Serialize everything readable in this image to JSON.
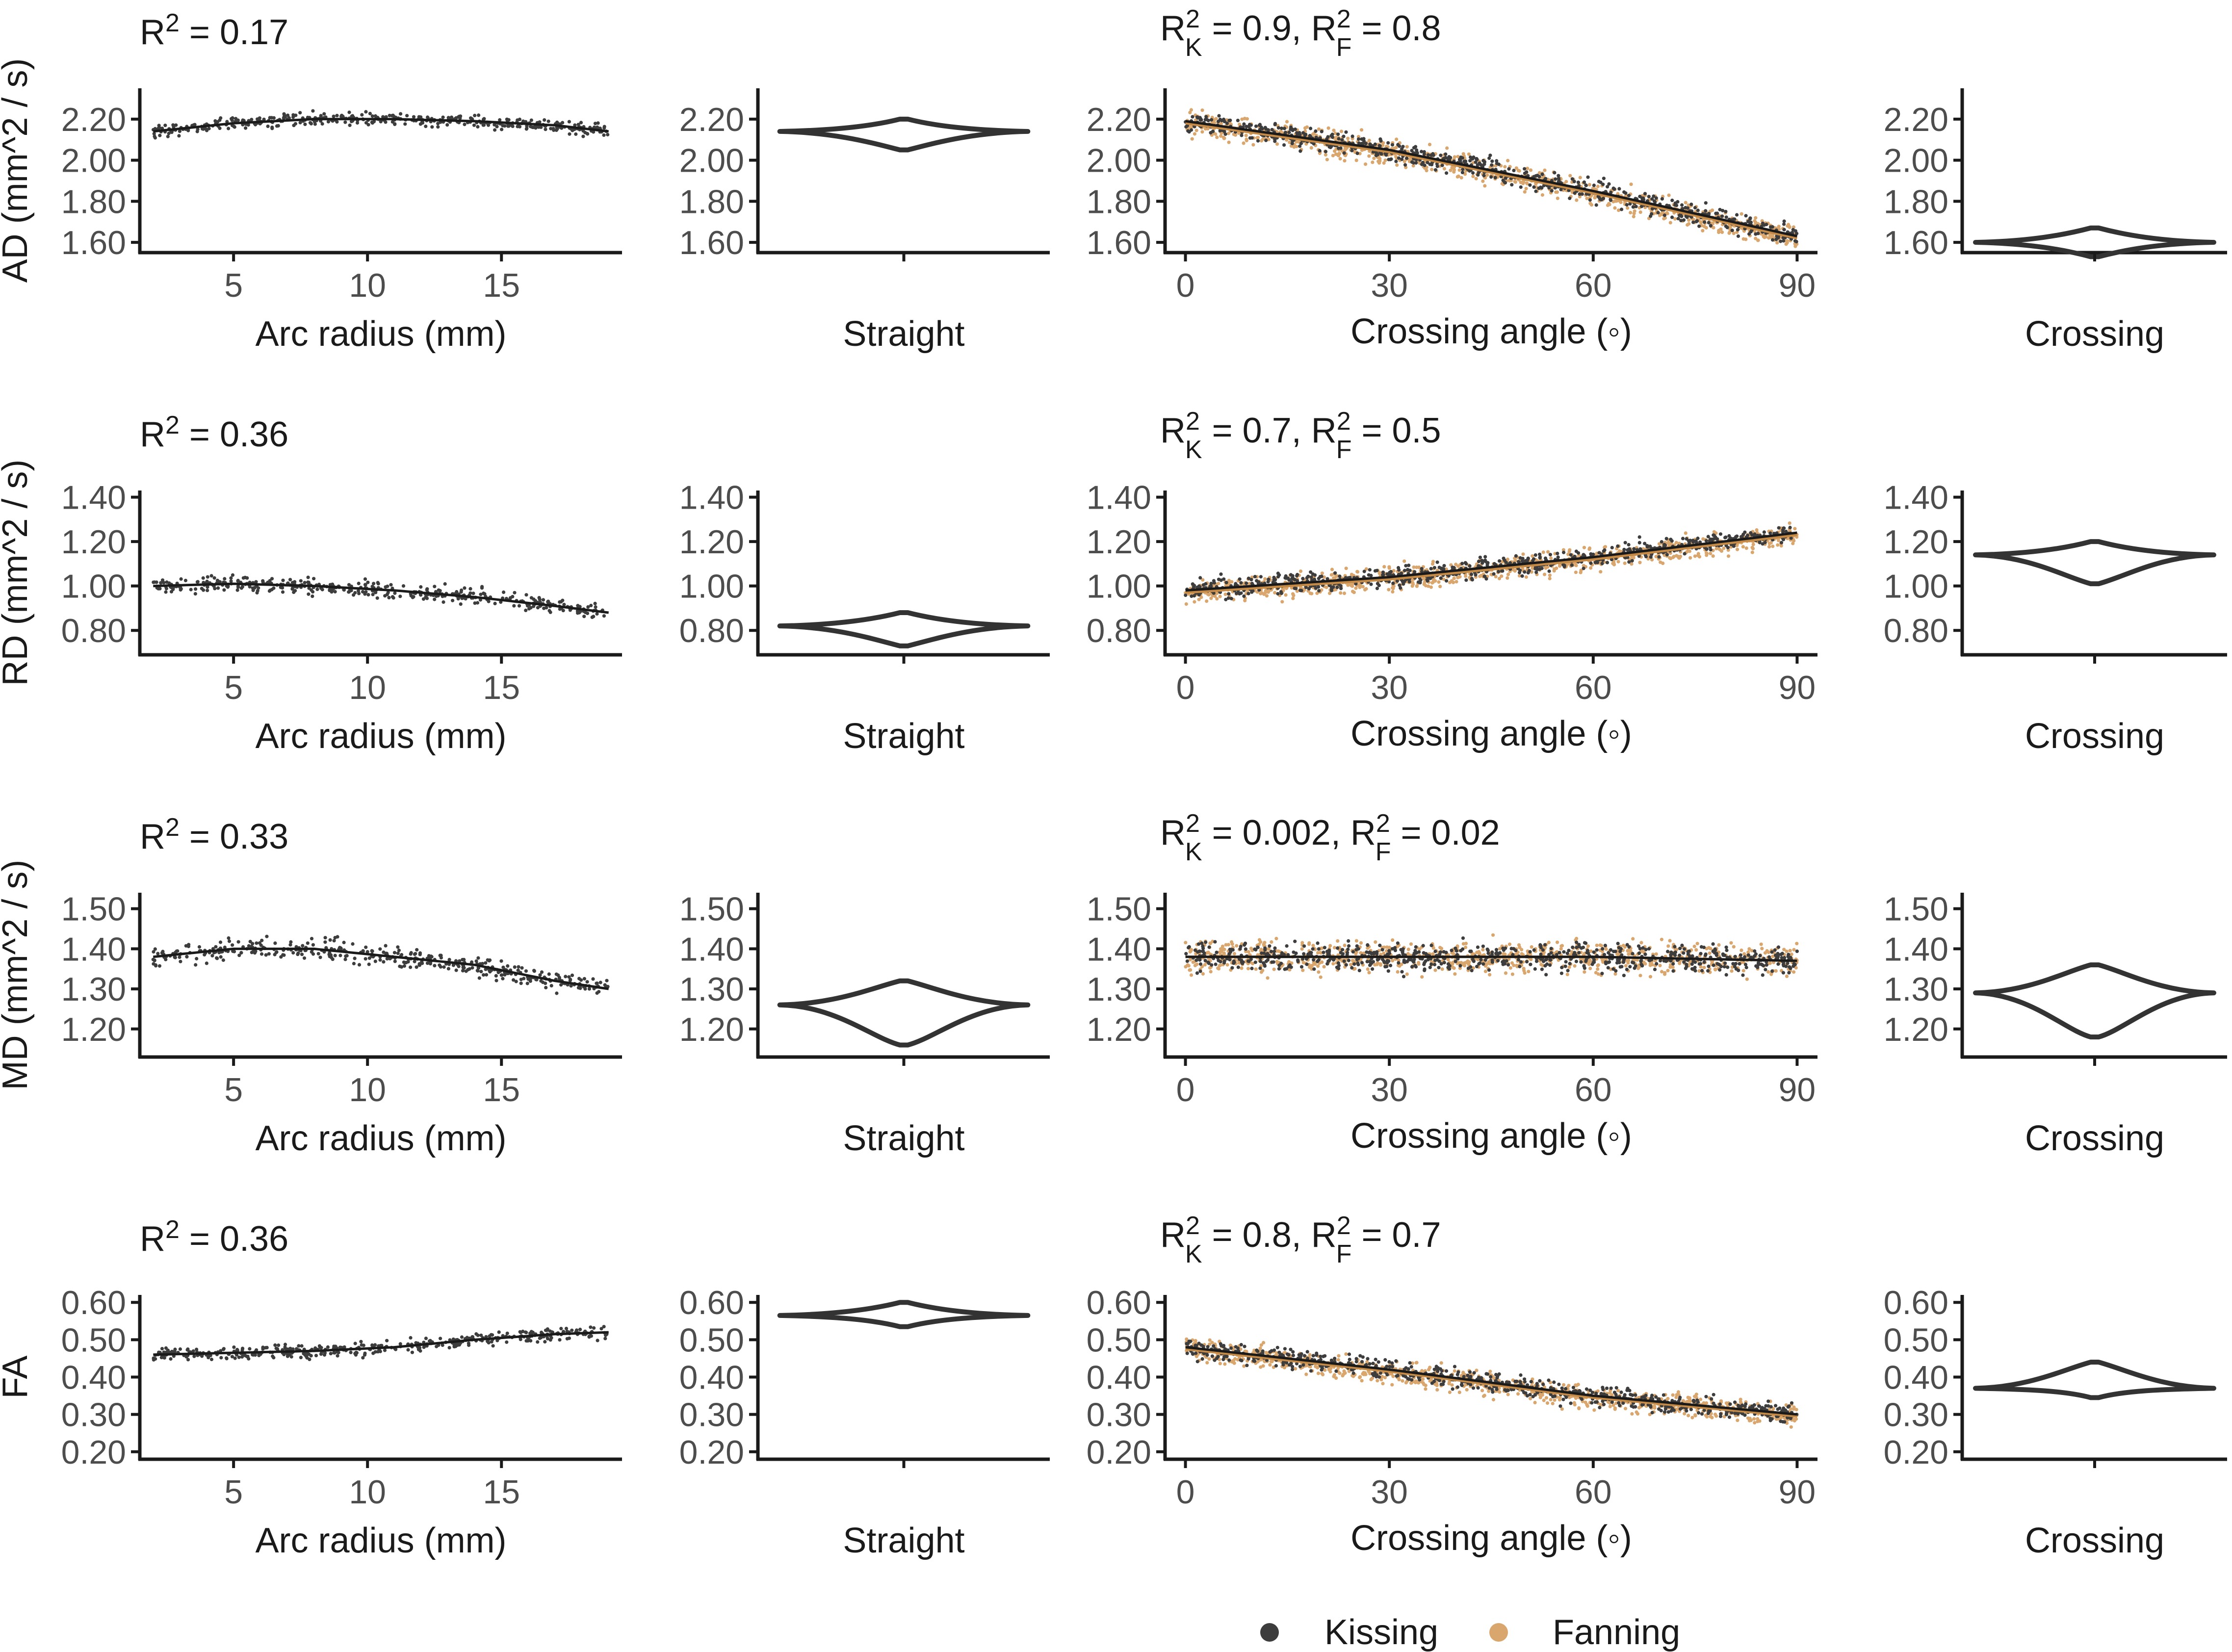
{
  "colors": {
    "kissing": "#3d3d3d",
    "fanning": "#d9a66e",
    "axis": "#1a1a1a",
    "line": "#1a1a1a",
    "fanning_line": "#c58a45"
  },
  "legend": {
    "items": [
      {
        "label": "Kissing",
        "color": "#3d3d3d"
      },
      {
        "label": "Fanning",
        "color": "#d9a66e"
      }
    ]
  },
  "chart_data": {
    "type": "scatter",
    "rows": [
      {
        "ylabel": "AD (mm^2 / s)",
        "ylim": [
          1.55,
          2.35
        ],
        "yticks": [
          "1.60",
          "1.80",
          "2.00",
          "2.20"
        ],
        "ytick_values": [
          1.6,
          1.8,
          2.0,
          2.2
        ],
        "arc": {
          "r2_prefix": "R",
          "r2_sup": "2",
          "r2_rest": " = 0.17",
          "fit": [
            [
              2,
              2.14
            ],
            [
              5,
              2.18
            ],
            [
              8,
              2.2
            ],
            [
              11,
              2.2
            ],
            [
              14,
              2.19
            ],
            [
              17,
              2.17
            ],
            [
              19,
              2.14
            ]
          ],
          "spread": 0.03
        },
        "straight": {
          "center": 2.14,
          "top": 2.2,
          "bottom": 2.05,
          "halfwidth": 0.85
        },
        "crossing": {
          "r2": {
            "a": "R",
            "sup1": "2",
            "sub1": "K",
            "b": " = 0.9, R",
            "sup2": "2",
            "sub2": "F",
            "c": " = 0.8"
          },
          "fit": [
            [
              0,
              2.19
            ],
            [
              30,
              2.05
            ],
            [
              60,
              1.85
            ],
            [
              90,
              1.63
            ]
          ],
          "fan_offset": -0.01,
          "spread": 0.06
        },
        "crossing_violin": {
          "center": 1.6,
          "top": 1.67,
          "bottom": 1.53,
          "halfwidth": 0.9
        }
      },
      {
        "ylabel": "RD (mm^2 / s)",
        "ylim": [
          0.69,
          1.43
        ],
        "yticks": [
          "0.80",
          "1.00",
          "1.20",
          "1.40"
        ],
        "ytick_values": [
          0.8,
          1.0,
          1.2,
          1.4
        ],
        "arc": {
          "r2_prefix": "R",
          "r2_sup": "2",
          "r2_rest": " = 0.36",
          "fit": [
            [
              2,
              1.0
            ],
            [
              5,
              1.01
            ],
            [
              8,
              1.0
            ],
            [
              11,
              0.98
            ],
            [
              14,
              0.95
            ],
            [
              17,
              0.91
            ],
            [
              19,
              0.88
            ]
          ],
          "spread": 0.035
        },
        "straight": {
          "center": 0.82,
          "top": 0.88,
          "bottom": 0.73,
          "halfwidth": 0.85
        },
        "crossing": {
          "r2": {
            "a": "R",
            "sup1": "2",
            "sub1": "K",
            "b": " = 0.7, R",
            "sup2": "2",
            "sub2": "F",
            "c": " = 0.5"
          },
          "fit": [
            [
              0,
              0.98
            ],
            [
              30,
              1.04
            ],
            [
              60,
              1.13
            ],
            [
              90,
              1.24
            ]
          ],
          "fan_offset": -0.01,
          "spread": 0.05
        },
        "crossing_violin": {
          "center": 1.14,
          "top": 1.2,
          "bottom": 1.01,
          "halfwidth": 0.9
        }
      },
      {
        "ylabel": "MD (mm^2 / s)",
        "ylim": [
          1.13,
          1.54
        ],
        "yticks": [
          "1.20",
          "1.30",
          "1.40",
          "1.50"
        ],
        "ytick_values": [
          1.2,
          1.3,
          1.4,
          1.5
        ],
        "arc": {
          "r2_prefix": "R",
          "r2_sup": "2",
          "r2_rest": " = 0.33",
          "fit": [
            [
              2,
              1.38
            ],
            [
              5,
              1.4
            ],
            [
              8,
              1.4
            ],
            [
              11,
              1.38
            ],
            [
              14,
              1.36
            ],
            [
              17,
              1.32
            ],
            [
              19,
              1.3
            ]
          ],
          "spread": 0.025
        },
        "straight": {
          "center": 1.26,
          "top": 1.32,
          "bottom": 1.16,
          "halfwidth": 0.85
        },
        "crossing": {
          "r2": {
            "a": "R",
            "sup1": "2",
            "sub1": "K",
            "b": " = 0.002, R",
            "sup2": "2",
            "sub2": "F",
            "c": " = 0.02"
          },
          "fit": [
            [
              0,
              1.38
            ],
            [
              30,
              1.38
            ],
            [
              60,
              1.38
            ],
            [
              90,
              1.37
            ]
          ],
          "fan_offset": 0.0,
          "spread": 0.04
        },
        "crossing_violin": {
          "center": 1.29,
          "top": 1.36,
          "bottom": 1.18,
          "halfwidth": 0.9
        }
      },
      {
        "ylabel": "FA",
        "ylim": [
          0.18,
          0.62
        ],
        "yticks": [
          "0.20",
          "0.30",
          "0.40",
          "0.50",
          "0.60"
        ],
        "ytick_values": [
          0.2,
          0.3,
          0.4,
          0.5,
          0.6
        ],
        "arc": {
          "r2_prefix": "R",
          "r2_sup": "2",
          "r2_rest": " = 0.36",
          "fit": [
            [
              2,
              0.46
            ],
            [
              5,
              0.465
            ],
            [
              8,
              0.47
            ],
            [
              11,
              0.48
            ],
            [
              14,
              0.5
            ],
            [
              17,
              0.515
            ],
            [
              19,
              0.52
            ]
          ],
          "spread": 0.018
        },
        "straight": {
          "center": 0.565,
          "top": 0.6,
          "bottom": 0.535,
          "halfwidth": 0.85
        },
        "crossing": {
          "r2": {
            "a": "R",
            "sup1": "2",
            "sub1": "K",
            "b": " = 0.8, R",
            "sup2": "2",
            "sub2": "F",
            "c": " = 0.7"
          },
          "fit": [
            [
              0,
              0.48
            ],
            [
              30,
              0.42
            ],
            [
              60,
              0.35
            ],
            [
              90,
              0.3
            ]
          ],
          "fan_offset": -0.005,
          "spread": 0.03
        },
        "crossing_violin": {
          "center": 0.37,
          "top": 0.44,
          "bottom": 0.345,
          "halfwidth": 0.9
        }
      }
    ],
    "arc_x": {
      "label": "Arc radius (mm)",
      "lim": [
        1.5,
        19.5
      ],
      "ticks": [
        "5",
        "10",
        "15"
      ],
      "tick_values": [
        5,
        10,
        15
      ]
    },
    "straight_x": {
      "label": "Straight"
    },
    "crossing_x": {
      "label": "Crossing angle (◦)",
      "lim": [
        -3,
        93
      ],
      "ticks": [
        "0",
        "30",
        "60",
        "90"
      ],
      "tick_values": [
        0,
        30,
        60,
        90
      ]
    },
    "crossing_violin_x": {
      "label": "Crossing"
    },
    "series": [
      {
        "name": "Kissing"
      },
      {
        "name": "Fanning"
      }
    ]
  }
}
